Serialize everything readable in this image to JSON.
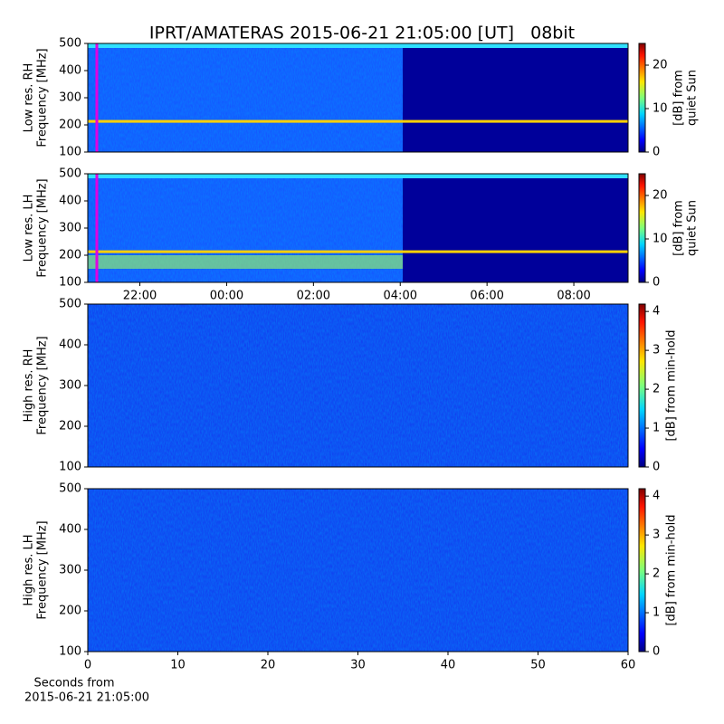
{
  "chart_data": [
    {
      "type": "heatmap",
      "title": "IPRT/AMATERAS 2015-06-21 21:05:00 [UT]   08bit",
      "ylabel": [
        "Low res. RH",
        "Frequency [MHz]"
      ],
      "ylim": [
        100,
        500
      ],
      "yticks": [
        100,
        200,
        300,
        400,
        500
      ],
      "colorbar_label": [
        "[dB] from",
        "quiet Sun"
      ],
      "clim": [
        0,
        25
      ],
      "cticks": [
        0,
        10,
        20
      ],
      "colormap": "jet"
    },
    {
      "type": "heatmap",
      "ylabel": [
        "Low res. LH",
        "Frequency [MHz]"
      ],
      "ylim": [
        100,
        500
      ],
      "yticks": [
        100,
        200,
        300,
        400,
        500
      ],
      "xlim": [
        20.8,
        33.25
      ],
      "xticks": [
        {
          "value": 22,
          "label": "22:00"
        },
        {
          "value": 24,
          "label": "00:00"
        },
        {
          "value": 26,
          "label": "02:00"
        },
        {
          "value": 28,
          "label": "04:00"
        },
        {
          "value": 30,
          "label": "06:00"
        },
        {
          "value": 32,
          "label": "08:00"
        }
      ],
      "colorbar_label": [
        "[dB] from",
        "quiet Sun"
      ],
      "clim": [
        0,
        25
      ],
      "cticks": [
        0,
        10,
        20
      ],
      "colormap": "jet"
    },
    {
      "type": "heatmap",
      "ylabel": [
        "High res. RH",
        "Frequency [MHz]"
      ],
      "ylim": [
        100,
        500
      ],
      "yticks": [
        100,
        200,
        300,
        400,
        500
      ],
      "colorbar_label": [
        "[dB] from min-hold"
      ],
      "clim": [
        0,
        4.19
      ],
      "cticks": [
        0,
        1,
        2,
        3,
        4
      ],
      "colormap": "jet"
    },
    {
      "type": "heatmap",
      "ylabel": [
        "High res. LH",
        "Frequency [MHz]"
      ],
      "ylim": [
        100,
        500
      ],
      "yticks": [
        100,
        200,
        300,
        400,
        500
      ],
      "xlim": [
        0,
        60
      ],
      "xticks": [
        0,
        10,
        20,
        30,
        40,
        50,
        60
      ],
      "xlabel": [
        "Seconds from",
        "2015-06-21 21:05:00"
      ],
      "colorbar_label": [
        "[dB] from min-hold"
      ],
      "clim": [
        0,
        4.19
      ],
      "cticks": [
        0,
        1,
        2,
        3,
        4
      ],
      "colormap": "jet"
    }
  ]
}
